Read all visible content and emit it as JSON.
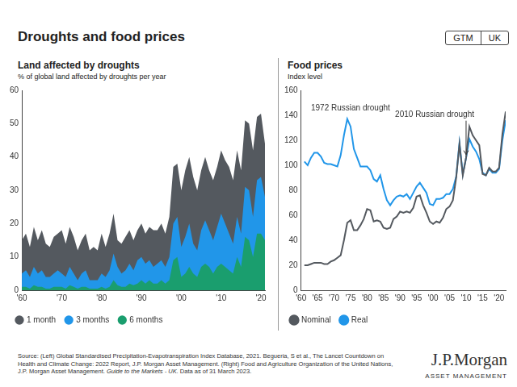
{
  "title": "Droughts and food prices",
  "tabs": [
    "GTM",
    "UK"
  ],
  "chart_data": [
    {
      "type": "area",
      "title": "Land affected by droughts",
      "subtitle": "% of global land affected by droughts per year",
      "x": [
        1960,
        1961,
        1962,
        1963,
        1964,
        1965,
        1966,
        1967,
        1968,
        1969,
        1970,
        1971,
        1972,
        1973,
        1974,
        1975,
        1976,
        1977,
        1978,
        1979,
        1980,
        1981,
        1982,
        1983,
        1984,
        1985,
        1986,
        1987,
        1988,
        1989,
        1990,
        1991,
        1992,
        1993,
        1994,
        1995,
        1996,
        1997,
        1998,
        1999,
        2000,
        2001,
        2002,
        2003,
        2004,
        2005,
        2006,
        2007,
        2008,
        2009,
        2010,
        2011,
        2012,
        2013,
        2014,
        2015,
        2016,
        2017,
        2018,
        2019,
        2020,
        2021
      ],
      "series": [
        {
          "name": "1 month",
          "color": "#54595f",
          "values": [
            15,
            17,
            13,
            19,
            15,
            18,
            14,
            13,
            16,
            17,
            18,
            14,
            19,
            16,
            12,
            15,
            17,
            12,
            13,
            12,
            17,
            13,
            17,
            23,
            15,
            14,
            16,
            18,
            15,
            18,
            20,
            17,
            19,
            18,
            18,
            20,
            17,
            22,
            37,
            38,
            30,
            36,
            40,
            34,
            30,
            36,
            40,
            36,
            33,
            37,
            42,
            39,
            37,
            33,
            42,
            36,
            51,
            50,
            42,
            52,
            53,
            44
          ]
        },
        {
          "name": "3 months",
          "color": "#2196e9",
          "values": [
            5,
            6,
            4,
            7,
            5,
            6,
            4,
            4,
            5,
            6,
            5,
            4,
            7,
            5,
            3,
            5,
            6,
            3,
            3,
            3,
            5,
            4,
            6,
            11,
            7,
            5,
            6,
            8,
            6,
            9,
            10,
            8,
            9,
            7,
            8,
            9,
            7,
            10,
            20,
            22,
            13,
            16,
            20,
            14,
            12,
            18,
            21,
            18,
            15,
            19,
            23,
            20,
            17,
            14,
            22,
            17,
            31,
            30,
            22,
            33,
            34,
            28
          ]
        },
        {
          "name": "6 months",
          "color": "#1a9e6e",
          "values": [
            1,
            1,
            0.5,
            1.5,
            1,
            1,
            0.5,
            0.5,
            1,
            1,
            1,
            0.5,
            1.5,
            1,
            0.5,
            1,
            1,
            0.5,
            0.5,
            0.5,
            1,
            0.5,
            1,
            3,
            1.5,
            1,
            1,
            2,
            1.5,
            2,
            3,
            2,
            3,
            2,
            2,
            3,
            2,
            3,
            9,
            10,
            4,
            5,
            7,
            5,
            4,
            7,
            8,
            7,
            5,
            7,
            8,
            7,
            6,
            5,
            10,
            7,
            16,
            15,
            10,
            17,
            17,
            15
          ]
        }
      ],
      "xlim": [
        1960,
        2021
      ],
      "xticks": [
        {
          "value": 1960,
          "label": "'60"
        },
        {
          "value": 1970,
          "label": "'70"
        },
        {
          "value": 1980,
          "label": "'80"
        },
        {
          "value": 1990,
          "label": "'90"
        },
        {
          "value": 2000,
          "label": "'00"
        },
        {
          "value": 2010,
          "label": "'10"
        },
        {
          "value": 2020,
          "label": "'20"
        }
      ],
      "ylim": [
        0,
        60
      ],
      "yticks": [
        0,
        10,
        20,
        30,
        40,
        50,
        60
      ],
      "grid": false,
      "legend": "bottom-left"
    },
    {
      "type": "line",
      "title": "Food prices",
      "subtitle": "Index level",
      "x": [
        1961,
        1962,
        1963,
        1964,
        1965,
        1966,
        1967,
        1968,
        1969,
        1970,
        1971,
        1972,
        1973,
        1974,
        1975,
        1976,
        1977,
        1978,
        1979,
        1980,
        1981,
        1982,
        1983,
        1984,
        1985,
        1986,
        1987,
        1988,
        1989,
        1990,
        1991,
        1992,
        1993,
        1994,
        1995,
        1996,
        1997,
        1998,
        1999,
        2000,
        2001,
        2002,
        2003,
        2004,
        2005,
        2006,
        2007,
        2008,
        2009,
        2010,
        2011,
        2012,
        2013,
        2014,
        2015,
        2016,
        2017,
        2018,
        2019,
        2020,
        2021,
        2022
      ],
      "series": [
        {
          "name": "Nominal",
          "color": "#54595f",
          "values": [
            20,
            20,
            21,
            22,
            22,
            22,
            21,
            21,
            23,
            24,
            26,
            28,
            40,
            54,
            56,
            48,
            48,
            52,
            57,
            65,
            64,
            55,
            56,
            55,
            50,
            49,
            50,
            57,
            59,
            63,
            62,
            63,
            62,
            66,
            75,
            76,
            68,
            62,
            55,
            53,
            55,
            54,
            58,
            65,
            67,
            72,
            90,
            117,
            92,
            106,
            131,
            124,
            120,
            116,
            93,
            92,
            98,
            95,
            95,
            98,
            125,
            143
          ]
        },
        {
          "name": "Real",
          "color": "#2196e9",
          "values": [
            103,
            100,
            106,
            110,
            110,
            107,
            102,
            101,
            101,
            100,
            99,
            108,
            124,
            137,
            131,
            113,
            106,
            99,
            99,
            99,
            96,
            89,
            87,
            92,
            81,
            72,
            68,
            72,
            75,
            76,
            75,
            77,
            73,
            78,
            83,
            86,
            82,
            78,
            69,
            68,
            73,
            73,
            74,
            77,
            77,
            81,
            91,
            118,
            93,
            106,
            121,
            115,
            111,
            105,
            94,
            92,
            97,
            94,
            94,
            97,
            120,
            136
          ]
        }
      ],
      "xlim": [
        1960,
        2022
      ],
      "xticks": [
        {
          "value": 1960,
          "label": "'60"
        },
        {
          "value": 1965,
          "label": "'65"
        },
        {
          "value": 1970,
          "label": "'70"
        },
        {
          "value": 1975,
          "label": "'75"
        },
        {
          "value": 1980,
          "label": "'80"
        },
        {
          "value": 1985,
          "label": "'85"
        },
        {
          "value": 1990,
          "label": "'90"
        },
        {
          "value": 1995,
          "label": "'95"
        },
        {
          "value": 2000,
          "label": "'00"
        },
        {
          "value": 2005,
          "label": "'05"
        },
        {
          "value": 2010,
          "label": "'10"
        },
        {
          "value": 2015,
          "label": "'15"
        },
        {
          "value": 2020,
          "label": "'20"
        }
      ],
      "ylim": [
        0,
        160
      ],
      "yticks": [
        0,
        20,
        40,
        60,
        80,
        100,
        120,
        140,
        160
      ],
      "grid": false,
      "legend": "bottom-left",
      "annotations": [
        {
          "text": "1972 Russian drought",
          "x": 1974,
          "y": 137
        },
        {
          "text": "2010 Russian drought",
          "x": 2010,
          "y": 106
        }
      ]
    }
  ],
  "source": [
    "Source: (Left) Global Standardised Precipitation-Evapotranspiration Index Database, 2021. Begueria, S et al., The Lancet Countdown on Health and Climate Change: 2022 Report, J.P. Morgan Asset Management. (Right) Food and Agriculture Organization of the United Nations, J.P. Morgan Asset Management.",
    "Guide to the Markets - UK.",
    "Data as of 31 March 2023."
  ],
  "logo": [
    "J.P.Morgan",
    "ASSET MANAGEMENT"
  ]
}
